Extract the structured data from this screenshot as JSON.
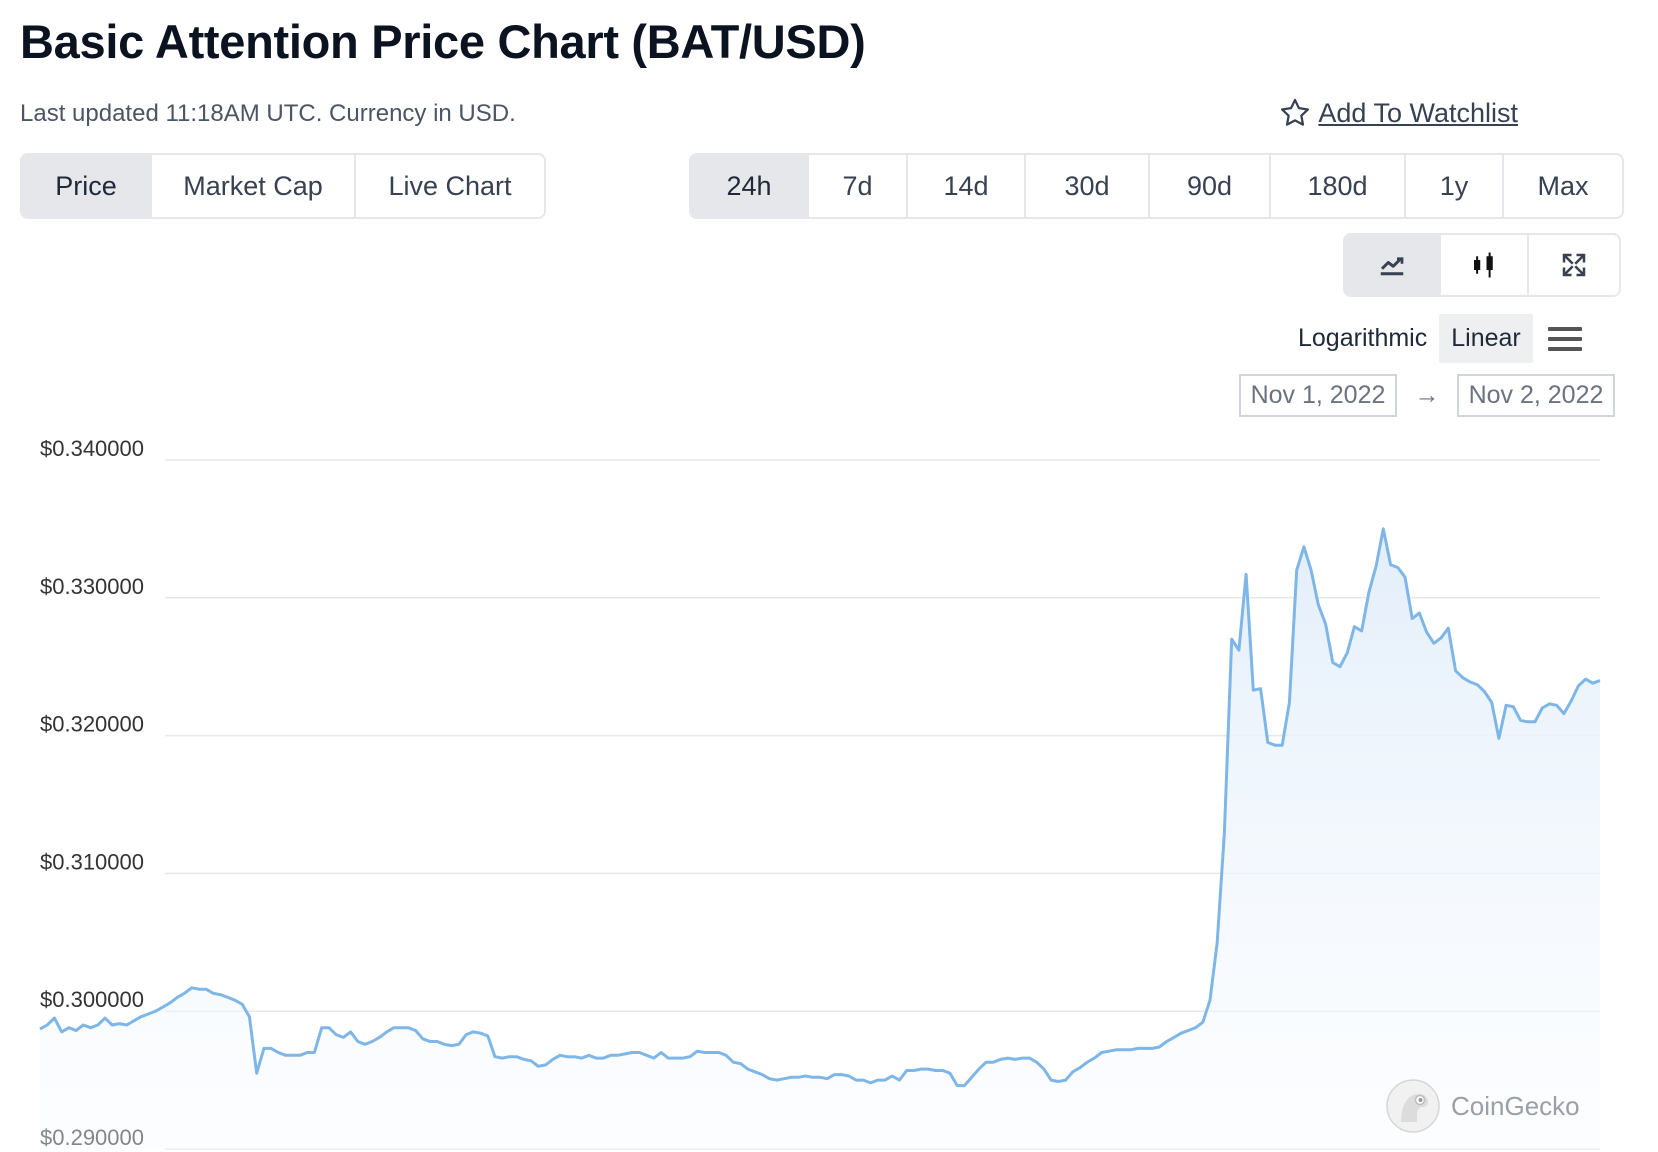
{
  "header": {
    "title": "Basic Attention Price Chart (BAT/USD)",
    "updated": "Last updated 11:18AM UTC. Currency in USD.",
    "watchlist": "Add To Watchlist"
  },
  "chart_types": [
    {
      "label": "Price",
      "active": true
    },
    {
      "label": "Market Cap",
      "active": false
    },
    {
      "label": "Live Chart",
      "active": false
    }
  ],
  "ranges": [
    {
      "label": "24h",
      "active": true
    },
    {
      "label": "7d",
      "active": false
    },
    {
      "label": "14d",
      "active": false
    },
    {
      "label": "30d",
      "active": false
    },
    {
      "label": "90d",
      "active": false
    },
    {
      "label": "180d",
      "active": false
    },
    {
      "label": "1y",
      "active": false
    },
    {
      "label": "Max",
      "active": false
    }
  ],
  "view_icons": [
    "line-chart-icon",
    "candlestick-icon",
    "expand-icon"
  ],
  "scale": {
    "logarithmic": "Logarithmic",
    "linear": "Linear",
    "active": "linear"
  },
  "date_range": {
    "from": "Nov 1, 2022",
    "to": "Nov 2, 2022",
    "arrow": "→"
  },
  "watermark": "CoinGecko",
  "colors": {
    "line": "#7eb6e7",
    "fill_top": "#e3eefa",
    "grid": "#e8e8e8"
  },
  "chart_data": {
    "type": "area",
    "title": "",
    "xlabel": "",
    "ylabel": "",
    "ylim": [
      0.29,
      0.34
    ],
    "yticks": [
      0.34,
      0.33,
      0.32,
      0.31,
      0.3,
      0.29
    ],
    "ytick_labels": [
      "$0.340000",
      "$0.330000",
      "$0.320000",
      "$0.310000",
      "$0.300000",
      "$0.290000"
    ],
    "grid": true,
    "series": [
      {
        "values": [
          0.2987,
          0.299,
          0.2995,
          0.2985,
          0.2988,
          0.2986,
          0.299,
          0.2988,
          0.299,
          0.2995,
          0.299,
          0.2991,
          0.299,
          0.2993,
          0.2996,
          0.2998,
          0.3,
          0.3003,
          0.3006,
          0.301,
          0.3013,
          0.3017,
          0.3016,
          0.3016,
          0.3013,
          0.3012,
          0.301,
          0.3008,
          0.3005,
          0.2996,
          0.2955,
          0.2973,
          0.2973,
          0.297,
          0.2968,
          0.2968,
          0.2968,
          0.297,
          0.297,
          0.2988,
          0.2988,
          0.2983,
          0.2981,
          0.2985,
          0.2978,
          0.2976,
          0.2978,
          0.2981,
          0.2985,
          0.2988,
          0.2988,
          0.2988,
          0.2986,
          0.298,
          0.2978,
          0.2978,
          0.2976,
          0.2975,
          0.2976,
          0.2983,
          0.2985,
          0.2984,
          0.2982,
          0.2967,
          0.2966,
          0.2967,
          0.2967,
          0.2965,
          0.2964,
          0.296,
          0.2961,
          0.2965,
          0.2968,
          0.2967,
          0.2967,
          0.2966,
          0.2968,
          0.2966,
          0.2966,
          0.2968,
          0.2968,
          0.2969,
          0.297,
          0.297,
          0.2968,
          0.2966,
          0.297,
          0.2966,
          0.2966,
          0.2966,
          0.2967,
          0.2971,
          0.297,
          0.297,
          0.297,
          0.2968,
          0.2963,
          0.2962,
          0.2958,
          0.2956,
          0.2954,
          0.2951,
          0.295,
          0.2951,
          0.2952,
          0.2952,
          0.2953,
          0.2952,
          0.2952,
          0.2951,
          0.2954,
          0.2954,
          0.2953,
          0.295,
          0.295,
          0.2948,
          0.295,
          0.295,
          0.2953,
          0.295,
          0.2957,
          0.2957,
          0.2958,
          0.2958,
          0.2957,
          0.2957,
          0.2955,
          0.2946,
          0.2946,
          0.2952,
          0.2958,
          0.2963,
          0.2963,
          0.2965,
          0.2966,
          0.2965,
          0.2966,
          0.2966,
          0.2963,
          0.2958,
          0.295,
          0.2949,
          0.295,
          0.2956,
          0.2959,
          0.2963,
          0.2966,
          0.297,
          0.2971,
          0.2972,
          0.2972,
          0.2972,
          0.2973,
          0.2973,
          0.2973,
          0.2974,
          0.2978,
          0.2981,
          0.2984,
          0.2986,
          0.2988,
          0.2992,
          0.3008,
          0.305,
          0.313,
          0.327,
          0.3262,
          0.3317,
          0.3233,
          0.3234,
          0.3195,
          0.3193,
          0.3193,
          0.3224,
          0.332,
          0.3337,
          0.332,
          0.3295,
          0.3281,
          0.3253,
          0.325,
          0.326,
          0.3279,
          0.3276,
          0.3304,
          0.3323,
          0.335,
          0.3324,
          0.3322,
          0.3315,
          0.3285,
          0.3289,
          0.3275,
          0.3267,
          0.3271,
          0.3278,
          0.3247,
          0.3242,
          0.3239,
          0.3237,
          0.3232,
          0.3224,
          0.3198,
          0.3222,
          0.3221,
          0.3211,
          0.321,
          0.321,
          0.322,
          0.3223,
          0.3222,
          0.3216,
          0.3225,
          0.3236,
          0.3241,
          0.3238,
          0.324
        ]
      }
    ]
  }
}
